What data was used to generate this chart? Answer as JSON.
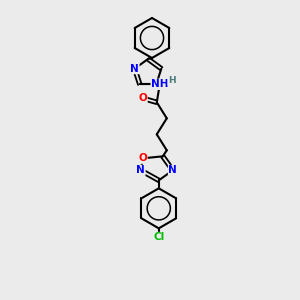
{
  "bg_color": "#ebebeb",
  "bond_color": "#000000",
  "atom_colors": {
    "N": "#0000ff",
    "O": "#ff0000",
    "S": "#cccc00",
    "Cl": "#00bb00",
    "C": "#000000",
    "H": "#4a7a7a"
  },
  "font_size": 7.5,
  "lw": 1.5
}
